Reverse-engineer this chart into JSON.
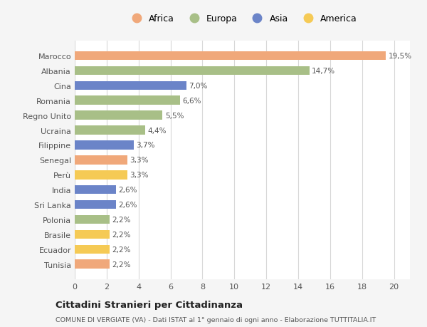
{
  "categories": [
    "Tunisia",
    "Ecuador",
    "Brasile",
    "Polonia",
    "Sri Lanka",
    "India",
    "Perù",
    "Senegal",
    "Filippine",
    "Ucraina",
    "Regno Unito",
    "Romania",
    "Cina",
    "Albania",
    "Marocco"
  ],
  "values": [
    2.2,
    2.2,
    2.2,
    2.2,
    2.6,
    2.6,
    3.3,
    3.3,
    3.7,
    4.4,
    5.5,
    6.6,
    7.0,
    14.7,
    19.5
  ],
  "labels": [
    "2,2%",
    "2,2%",
    "2,2%",
    "2,2%",
    "2,6%",
    "2,6%",
    "3,3%",
    "3,3%",
    "3,7%",
    "4,4%",
    "5,5%",
    "6,6%",
    "7,0%",
    "14,7%",
    "19,5%"
  ],
  "colors": [
    "#f0a87a",
    "#f5ca55",
    "#f5ca55",
    "#a8bf87",
    "#6b84c8",
    "#6b84c8",
    "#f5ca55",
    "#f0a87a",
    "#6b84c8",
    "#a8bf87",
    "#a8bf87",
    "#a8bf87",
    "#6b84c8",
    "#a8bf87",
    "#f0a87a"
  ],
  "legend_labels": [
    "Africa",
    "Europa",
    "Asia",
    "America"
  ],
  "legend_colors": [
    "#f0a87a",
    "#a8bf87",
    "#6b84c8",
    "#f5ca55"
  ],
  "title": "Cittadini Stranieri per Cittadinanza",
  "subtitle": "COMUNE DI VERGIATE (VA) - Dati ISTAT al 1° gennaio di ogni anno - Elaborazione TUTTITALIA.IT",
  "xlim": [
    0,
    21
  ],
  "xticks": [
    0,
    2,
    4,
    6,
    8,
    10,
    12,
    14,
    16,
    18,
    20
  ],
  "bg_color": "#f5f5f5",
  "plot_bg_color": "#ffffff",
  "grid_color": "#d8d8d8",
  "text_color": "#555555"
}
